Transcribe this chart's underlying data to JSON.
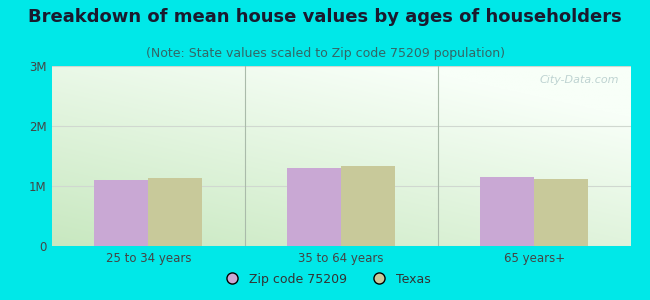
{
  "title": "Breakdown of mean house values by ages of householders",
  "subtitle": "(Note: State values scaled to Zip code 75209 population)",
  "categories": [
    "25 to 34 years",
    "35 to 64 years",
    "65 years+"
  ],
  "zip_values": [
    1100000,
    1300000,
    1150000
  ],
  "texas_values": [
    1130000,
    1330000,
    1120000
  ],
  "zip_color": "#c9a8d4",
  "texas_color": "#c8c99a",
  "background_color": "#00e8e8",
  "ylim": [
    0,
    3000000
  ],
  "yticks": [
    0,
    1000000,
    2000000,
    3000000
  ],
  "ytick_labels": [
    "0",
    "1M",
    "2M",
    "3M"
  ],
  "zip_label": "Zip code 75209",
  "texas_label": "Texas",
  "bar_width": 0.28,
  "title_fontsize": 13,
  "subtitle_fontsize": 9,
  "tick_fontsize": 8.5,
  "legend_fontsize": 9,
  "watermark": "City-Data.com",
  "grid_color": "#d0d8d0",
  "separator_color": "#aabbaa",
  "plot_grad_bottom": "#c8e8c0",
  "plot_grad_top": "#f0fff0"
}
